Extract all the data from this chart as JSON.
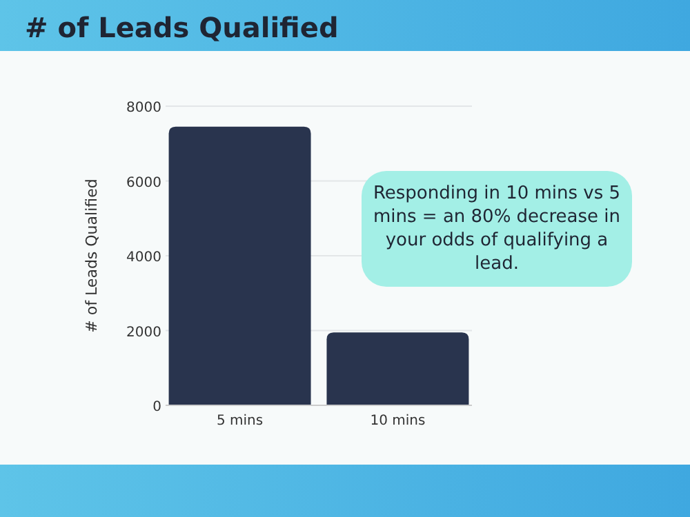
{
  "chart_data": {
    "type": "bar",
    "title": "# of Leads Qualified",
    "ylabel": "# of Leads Qualified",
    "categories": [
      "5 mins",
      "10 mins"
    ],
    "values": [
      7450,
      1950
    ],
    "color": "#29344e",
    "ylim": [
      0,
      8000
    ],
    "yticks": [
      0,
      2000,
      4000,
      6000,
      8000
    ],
    "grid": "y",
    "annotations": [
      "Responding in 10 mins vs 5 mins = an 80% decrease in your odds of qualifying a lead."
    ]
  }
}
